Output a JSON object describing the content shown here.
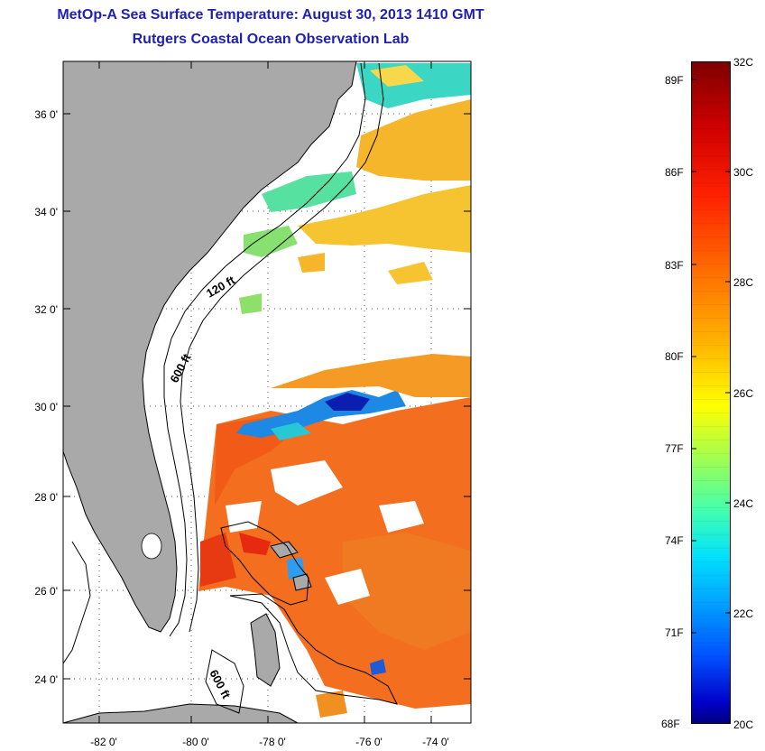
{
  "header": {
    "title": "MetOp-A Sea Surface Temperature:  August 30, 2013 1410 GMT",
    "subtitle": "Rutgers Coastal Ocean Observation Lab"
  },
  "map": {
    "lat_labels": [
      "36 0'",
      "34 0'",
      "32 0'",
      "30 0'",
      "28 0'",
      "26 0'",
      "24 0'"
    ],
    "lon_labels": [
      "-82 0'",
      "-80 0'",
      "-78 0'",
      "-76 0'",
      "-74 0'"
    ],
    "contour_labels": [
      "120 ft",
      "600 ft",
      "600 ft"
    ],
    "colors": {
      "land": "#a9a9a9",
      "water": "#ffffff"
    }
  },
  "colorbar": {
    "fahrenheit_labels": [
      "89F",
      "86F",
      "83F",
      "80F",
      "77F",
      "74F",
      "71F",
      "68F"
    ],
    "celsius_labels": [
      "32C",
      "30C",
      "28C",
      "26C",
      "24C",
      "22C",
      "20C"
    ],
    "range_c": [
      20,
      32
    ],
    "colormap": "jet"
  }
}
